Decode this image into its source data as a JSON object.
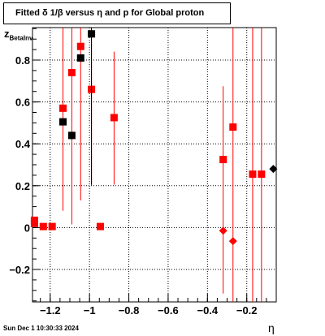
{
  "chart_data": {
    "type": "scatter",
    "title": "Fitted δ 1/β  versus η and p for Global proton",
    "ylabel_main": "z",
    "ylabel_sub": "BetaInv",
    "xlabel": "η",
    "xlim": [
      -1.29,
      -0.05
    ],
    "ylim": [
      -0.355,
      0.955
    ],
    "xticks": [
      -1.2,
      -1.0,
      -0.8,
      -0.6,
      -0.4,
      -0.2
    ],
    "xtick_labels": [
      "−1.2",
      "−1",
      "−0.8",
      "−0.6",
      "−0.4",
      "−0.2"
    ],
    "yticks": [
      -0.2,
      0,
      0.2,
      0.4,
      0.6,
      0.8
    ],
    "ytick_labels": [
      "−0.2",
      "0",
      "0.2",
      "0.4",
      "0.6",
      "0.8"
    ],
    "grid": true,
    "series": [
      {
        "color": "#ff0000",
        "marker": "square",
        "points": [
          {
            "x": -1.28,
            "y": 0.035,
            "ylo": 0.035,
            "yhi": 0.035
          },
          {
            "x": -1.28,
            "y": 0.02,
            "ylo": 0.02,
            "yhi": 0.02
          },
          {
            "x": -1.235,
            "y": 0.005,
            "ylo": 0.005,
            "yhi": 0.005
          },
          {
            "x": -1.19,
            "y": 0.005,
            "ylo": 0.005,
            "yhi": 0.005
          },
          {
            "x": -1.135,
            "y": 0.57,
            "ylo": 0.08,
            "yhi": 0.955
          },
          {
            "x": -1.09,
            "y": 0.74,
            "ylo": 0.015,
            "yhi": 0.955
          },
          {
            "x": -1.045,
            "y": 0.865,
            "ylo": 0.13,
            "yhi": 0.955
          },
          {
            "x": -0.99,
            "y": 0.66,
            "ylo": 0.2,
            "yhi": 0.955
          },
          {
            "x": -0.945,
            "y": 0.005,
            "ylo": 0.005,
            "yhi": 0.005
          },
          {
            "x": -0.875,
            "y": 0.525,
            "ylo": 0.205,
            "yhi": 0.84
          },
          {
            "x": -0.32,
            "y": 0.325,
            "ylo": -0.315,
            "yhi": 0.675
          },
          {
            "x": -0.27,
            "y": 0.48,
            "ylo": -0.355,
            "yhi": 0.955
          },
          {
            "x": -0.17,
            "y": 0.255,
            "ylo": -0.355,
            "yhi": 0.955
          },
          {
            "x": -0.125,
            "y": 0.255,
            "ylo": -0.355,
            "yhi": 0.955
          }
        ]
      },
      {
        "color": "#ff0000",
        "marker": "diamond",
        "points": [
          {
            "x": -0.32,
            "y": -0.015
          },
          {
            "x": -0.27,
            "y": -0.065
          }
        ]
      },
      {
        "color": "#000000",
        "marker": "square",
        "points": [
          {
            "x": -1.135,
            "y": 0.505,
            "ylo": 0.505,
            "yhi": 0.505
          },
          {
            "x": -1.09,
            "y": 0.44,
            "ylo": 0.44,
            "yhi": 0.44
          },
          {
            "x": -1.045,
            "y": 0.81,
            "ylo": 0.81,
            "yhi": 0.81
          },
          {
            "x": -0.99,
            "y": 0.925,
            "ylo": 0.205,
            "yhi": 0.955
          }
        ]
      },
      {
        "color": "#000000",
        "marker": "diamond",
        "points": [
          {
            "x": -0.065,
            "y": 0.28
          }
        ]
      }
    ],
    "footer": "Sun Dec  1 10:30:33 2024"
  }
}
